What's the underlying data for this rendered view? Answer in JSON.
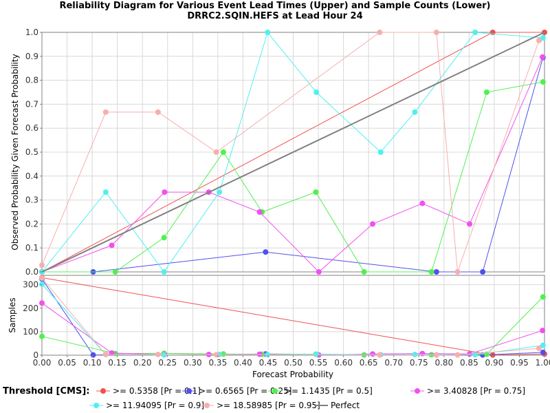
{
  "chart_data": {
    "type": "line",
    "title": "Reliability Diagram for Various Event Lead Times (Upper) and Sample Counts (Lower)",
    "subtitle": "DRRC2.SQIN.HEFS at Lead Hour 24",
    "xlabel": "Forecast Probability",
    "xlim": [
      0,
      1
    ],
    "x_ticks": [
      "0.00",
      "0.05",
      "0.10",
      "0.15",
      "0.20",
      "0.25",
      "0.30",
      "0.35",
      "0.40",
      "0.45",
      "0.50",
      "0.55",
      "0.60",
      "0.65",
      "0.70",
      "0.75",
      "0.80",
      "0.85",
      "0.90",
      "0.95",
      "1.00"
    ],
    "upper": {
      "ylabel": "Observed Probability Given Forecast Probability",
      "ylim": [
        0,
        1
      ],
      "y_ticks": [
        "0.0",
        "0.1",
        "0.2",
        "0.3",
        "0.4",
        "0.5",
        "0.6",
        "0.7",
        "0.8",
        "0.9",
        "1.0"
      ]
    },
    "lower": {
      "ylabel": "Samples",
      "ylim": [
        0,
        340
      ],
      "y_ticks": [
        "0",
        "100",
        "200",
        "300"
      ]
    },
    "legend_title": "Threshold [CMS]:",
    "legend_placement": "bottom",
    "grid": true,
    "series": [
      {
        "name": ">= 0.5358 [Pr = 0.1]",
        "color": "#f05050",
        "x": [
          0.0,
          0.897,
          1.0
        ],
        "y": [
          0.0,
          1.0,
          1.0
        ],
        "samples": [
          330,
          1,
          5
        ]
      },
      {
        "name": ">= 0.6565 [Pr = 0.25]",
        "color": "#5050f0",
        "x": [
          0.0,
          0.102,
          0.445,
          0.785,
          0.877,
          0.997
        ],
        "y": [
          0.0,
          0.0,
          0.083,
          0.0,
          0.0,
          0.895
        ],
        "samples": [
          325,
          1,
          5,
          1,
          1,
          12
        ]
      },
      {
        "name": ">= 1.1435 [Pr = 0.5]",
        "color": "#50f050",
        "x": [
          0.0,
          0.146,
          0.243,
          0.361,
          0.438,
          0.545,
          0.641,
          0.775,
          0.885,
          0.997
        ],
        "y": [
          0.0,
          0.0,
          0.143,
          0.5,
          0.25,
          0.333,
          0.0,
          0.0,
          0.75,
          0.793
        ],
        "samples": [
          80,
          7,
          8,
          5,
          4,
          4,
          1,
          2,
          4,
          248
        ]
      },
      {
        "name": ">= 3.40828 [Pr = 0.75]",
        "color": "#f050f0",
        "x": [
          0.0,
          0.139,
          0.244,
          0.332,
          0.433,
          0.551,
          0.658,
          0.757,
          0.851,
          0.996
        ],
        "y": [
          0.0,
          0.111,
          0.333,
          0.333,
          0.25,
          0.0,
          0.2,
          0.286,
          0.2,
          0.897
        ],
        "samples": [
          222,
          9,
          3,
          3,
          4,
          1,
          5,
          7,
          5,
          105
        ]
      },
      {
        "name": ">= 11.94095 [Pr = 0.9]",
        "color": "#50f0f0",
        "x": [
          0.0,
          0.127,
          0.243,
          0.353,
          0.449,
          0.546,
          0.674,
          0.742,
          0.862,
          0.997
        ],
        "y": [
          0.0,
          0.333,
          0.0,
          0.333,
          1.0,
          0.75,
          0.5,
          0.667,
          1.0,
          0.977
        ],
        "samples": [
          302,
          3,
          1,
          3,
          2,
          4,
          2,
          3,
          2,
          42
        ]
      },
      {
        "name": ">= 18.58985 [Pr = 0.95]",
        "color": "#f8aeae",
        "x": [
          0.0,
          0.127,
          0.231,
          0.347,
          0.672,
          0.785,
          0.827,
          0.989
        ],
        "y": [
          0.028,
          0.667,
          0.667,
          0.5,
          1.0,
          1.0,
          0.0,
          0.966
        ],
        "samples": [
          328,
          3,
          3,
          2,
          1,
          1,
          1,
          29
        ]
      },
      {
        "name": "Perfect",
        "color": "#808080",
        "x": [
          0.0,
          1.0
        ],
        "y": [
          0.0,
          1.0
        ]
      }
    ]
  }
}
